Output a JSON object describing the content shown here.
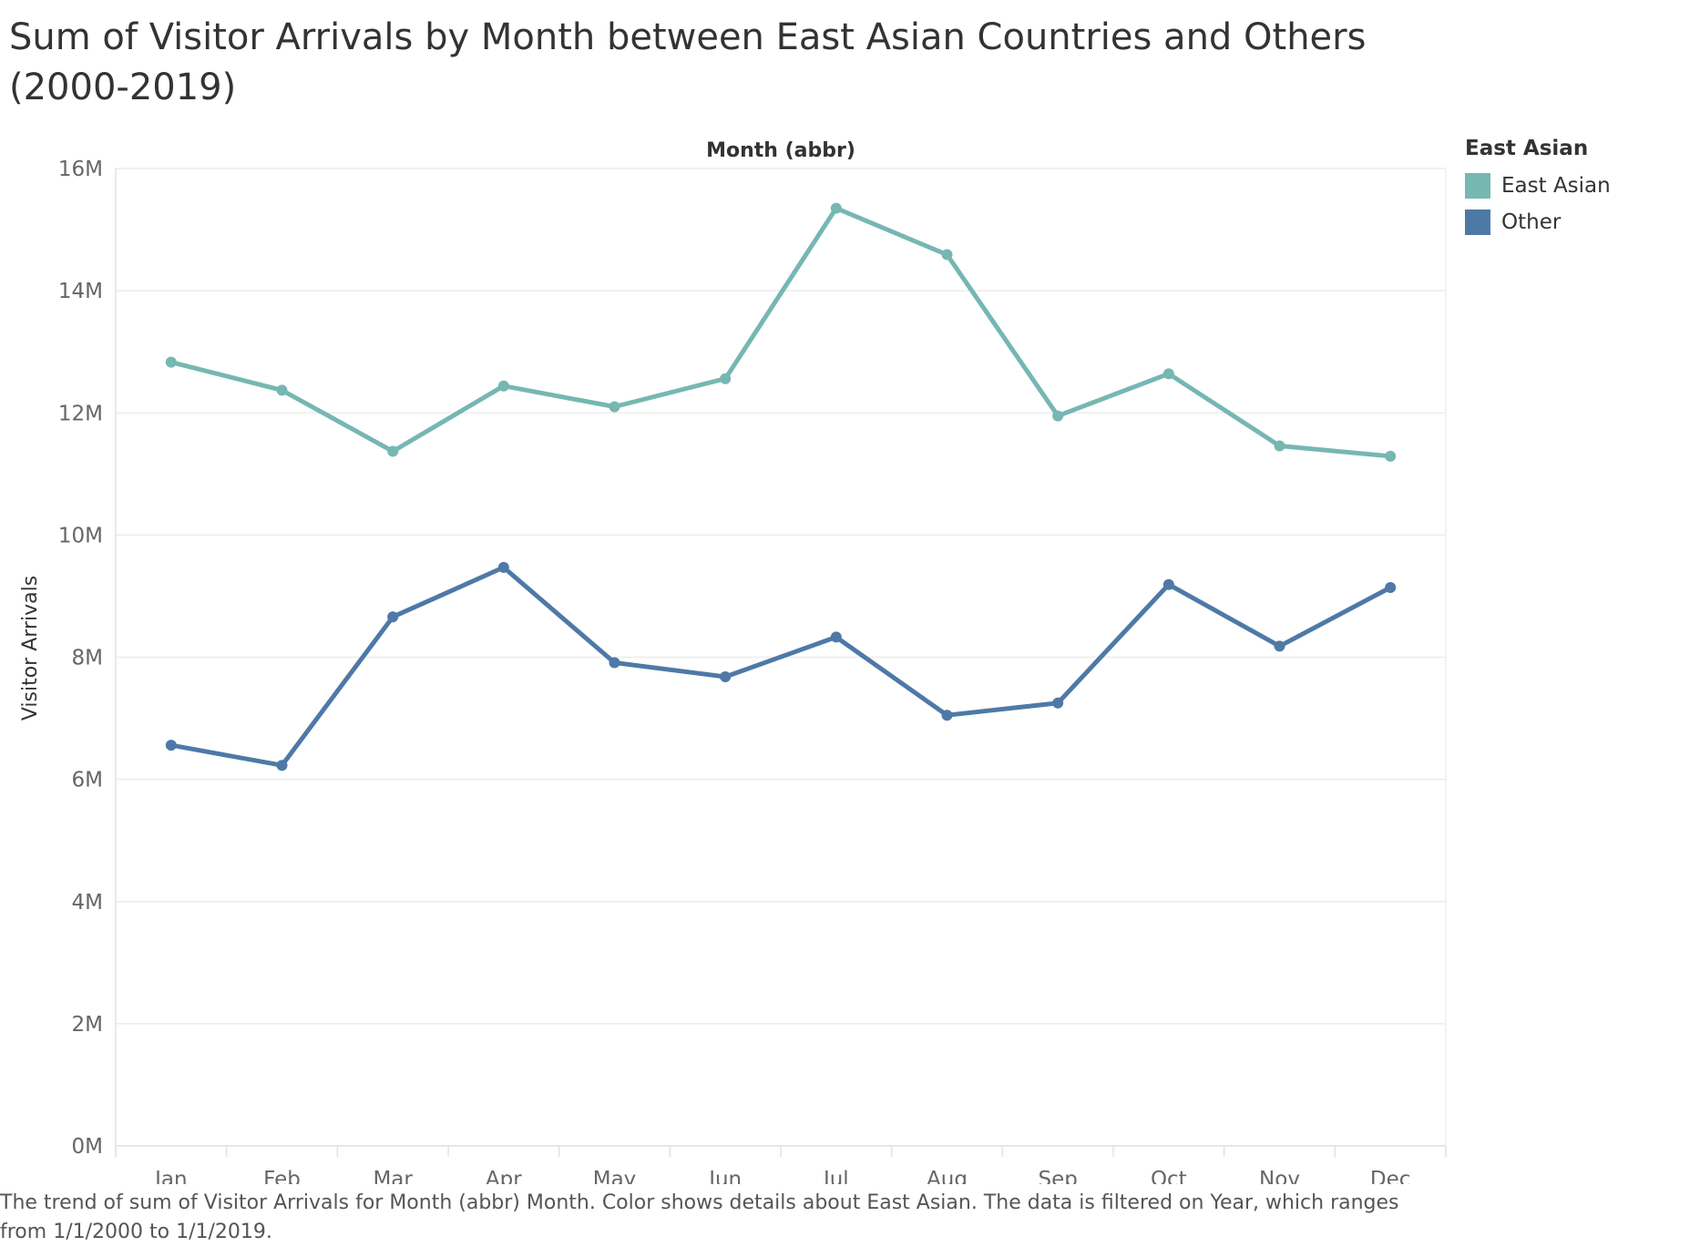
{
  "chart_data": {
    "type": "line",
    "title": "Sum of Visitor Arrivals by Month between East Asian Countries and Others (2000-2019)",
    "subtitle": "The trend of sum of Visitor Arrivals for Month (abbr) Month.  Color shows details about East Asian. The data is filtered on Year, which ranges from 1/1/2000 to 1/1/2019.",
    "xlabel": "Month (abbr)",
    "ylabel": "Visitor Arrivals",
    "categories": [
      "Jan",
      "Feb",
      "Mar",
      "Apr",
      "May",
      "Jun",
      "Jul",
      "Aug",
      "Sep",
      "Oct",
      "Nov",
      "Dec"
    ],
    "ylim": [
      0,
      16000000
    ],
    "yticks": [
      {
        "value": 0,
        "label": "0M"
      },
      {
        "value": 2000000,
        "label": "2M"
      },
      {
        "value": 4000000,
        "label": "4M"
      },
      {
        "value": 6000000,
        "label": "6M"
      },
      {
        "value": 8000000,
        "label": "8M"
      },
      {
        "value": 10000000,
        "label": "10M"
      },
      {
        "value": 12000000,
        "label": "12M"
      },
      {
        "value": 14000000,
        "label": "14M"
      },
      {
        "value": 16000000,
        "label": "16M"
      }
    ],
    "grid": true,
    "legend_title": "East Asian",
    "legend_position": "top-right",
    "series": [
      {
        "name": "East Asian",
        "color": "#76b7b2",
        "values": [
          12830000,
          12370000,
          11370000,
          12440000,
          12100000,
          12560000,
          15350000,
          14590000,
          11950000,
          12640000,
          11460000,
          11290000
        ]
      },
      {
        "name": "Other",
        "color": "#4e79a7",
        "values": [
          6560000,
          6230000,
          8660000,
          9470000,
          7910000,
          7680000,
          8330000,
          7050000,
          7250000,
          9190000,
          8180000,
          9140000
        ]
      }
    ]
  }
}
